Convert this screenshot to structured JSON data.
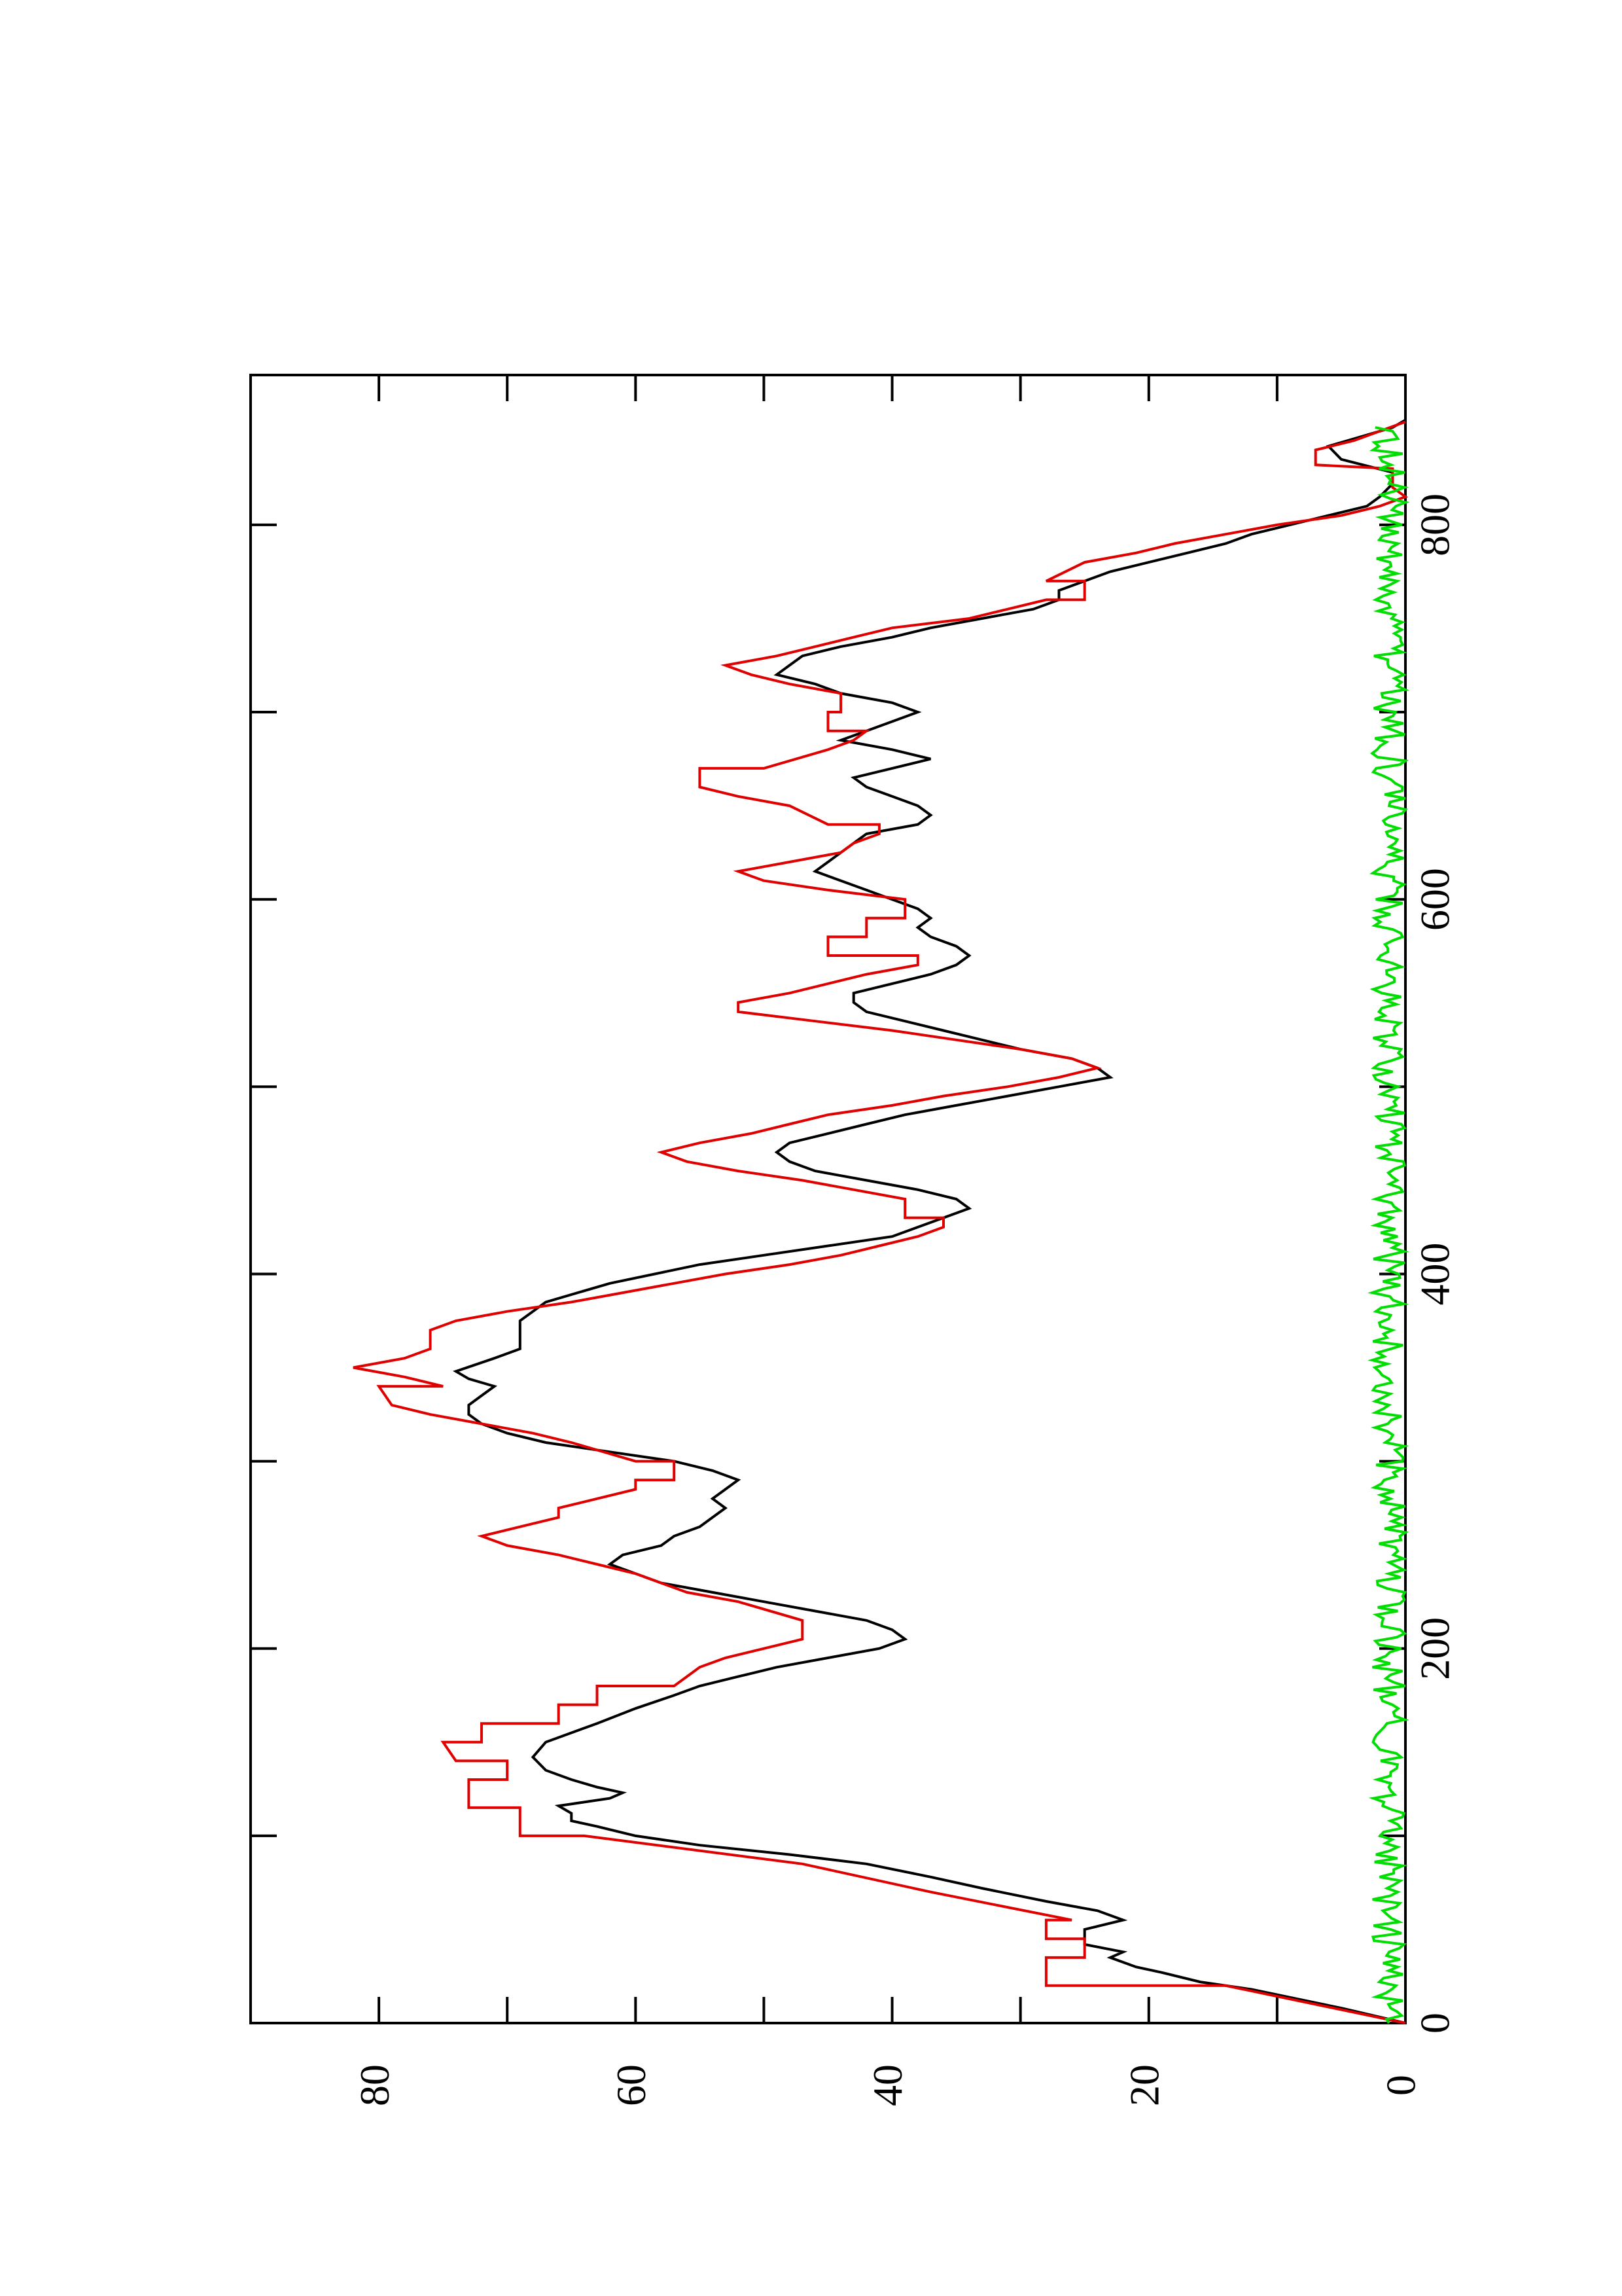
{
  "chart_data": {
    "type": "line",
    "orientation": "rotated-90-clockwise",
    "xlim": [
      0,
      880
    ],
    "ylim": [
      0,
      90
    ],
    "x_ticks": [
      0,
      200,
      400,
      600,
      800
    ],
    "x_ticks_minor": [
      100,
      300,
      500,
      700
    ],
    "y_ticks": [
      0,
      20,
      40,
      60,
      80
    ],
    "y_ticks_minor": [
      10,
      30,
      50,
      70
    ],
    "xlabel": "",
    "ylabel": "",
    "title": "",
    "grid": false,
    "series": [
      {
        "color": "#000000",
        "points": [
          [
            0,
            0
          ],
          [
            8,
            5
          ],
          [
            18,
            12
          ],
          [
            22,
            16
          ],
          [
            27,
            19
          ],
          [
            30,
            21
          ],
          [
            35,
            23
          ],
          [
            38,
            22
          ],
          [
            42,
            25
          ],
          [
            45,
            25
          ],
          [
            50,
            25
          ],
          [
            55,
            22
          ],
          [
            60,
            24
          ],
          [
            65,
            28
          ],
          [
            72,
            33
          ],
          [
            78,
            37
          ],
          [
            85,
            42
          ],
          [
            90,
            48
          ],
          [
            95,
            55
          ],
          [
            100,
            60
          ],
          [
            105,
            63
          ],
          [
            108,
            65
          ],
          [
            112,
            65
          ],
          [
            116,
            66
          ],
          [
            118,
            64
          ],
          [
            120,
            62
          ],
          [
            123,
            61
          ],
          [
            126,
            63
          ],
          [
            130,
            65
          ],
          [
            135,
            67
          ],
          [
            142,
            68
          ],
          [
            150,
            67
          ],
          [
            155,
            65
          ],
          [
            160,
            63
          ],
          [
            168,
            60
          ],
          [
            175,
            57
          ],
          [
            180,
            55
          ],
          [
            185,
            52
          ],
          [
            190,
            49
          ],
          [
            195,
            45
          ],
          [
            200,
            41
          ],
          [
            205,
            39
          ],
          [
            210,
            40
          ],
          [
            215,
            42
          ],
          [
            220,
            46
          ],
          [
            225,
            50
          ],
          [
            230,
            54
          ],
          [
            235,
            58
          ],
          [
            240,
            60
          ],
          [
            245,
            62
          ],
          [
            250,
            61
          ],
          [
            255,
            58
          ],
          [
            260,
            57
          ],
          [
            265,
            55
          ],
          [
            270,
            54
          ],
          [
            275,
            53
          ],
          [
            280,
            54
          ],
          [
            285,
            53
          ],
          [
            290,
            52
          ],
          [
            295,
            54
          ],
          [
            300,
            57
          ],
          [
            305,
            62
          ],
          [
            310,
            67
          ],
          [
            315,
            70
          ],
          [
            320,
            72
          ],
          [
            325,
            73
          ],
          [
            330,
            73
          ],
          [
            335,
            72
          ],
          [
            340,
            71
          ],
          [
            344,
            73
          ],
          [
            348,
            74
          ],
          [
            355,
            71
          ],
          [
            360,
            69
          ],
          [
            365,
            69
          ],
          [
            375,
            69
          ],
          [
            385,
            67
          ],
          [
            395,
            62
          ],
          [
            405,
            55
          ],
          [
            410,
            50
          ],
          [
            415,
            45
          ],
          [
            420,
            40
          ],
          [
            425,
            38
          ],
          [
            430,
            36
          ],
          [
            435,
            34
          ],
          [
            440,
            35
          ],
          [
            445,
            38
          ],
          [
            450,
            42
          ],
          [
            455,
            46
          ],
          [
            460,
            48
          ],
          [
            465,
            49
          ],
          [
            470,
            48
          ],
          [
            475,
            45
          ],
          [
            480,
            42
          ],
          [
            485,
            39
          ],
          [
            490,
            35
          ],
          [
            495,
            31
          ],
          [
            500,
            27
          ],
          [
            505,
            23
          ],
          [
            510,
            24
          ],
          [
            515,
            26
          ],
          [
            520,
            30
          ],
          [
            525,
            33
          ],
          [
            530,
            36
          ],
          [
            535,
            39
          ],
          [
            540,
            42
          ],
          [
            545,
            43
          ],
          [
            550,
            43
          ],
          [
            555,
            40
          ],
          [
            560,
            37
          ],
          [
            565,
            35
          ],
          [
            570,
            34
          ],
          [
            575,
            35
          ],
          [
            580,
            37
          ],
          [
            585,
            38
          ],
          [
            590,
            37
          ],
          [
            595,
            38
          ],
          [
            600,
            40
          ],
          [
            605,
            42
          ],
          [
            610,
            44
          ],
          [
            615,
            46
          ],
          [
            620,
            45
          ],
          [
            625,
            44
          ],
          [
            630,
            43
          ],
          [
            635,
            42
          ],
          [
            640,
            38
          ],
          [
            645,
            37
          ],
          [
            650,
            38
          ],
          [
            655,
            40
          ],
          [
            660,
            42
          ],
          [
            665,
            43
          ],
          [
            670,
            40
          ],
          [
            675,
            37
          ],
          [
            680,
            40
          ],
          [
            685,
            44
          ],
          [
            690,
            42
          ],
          [
            695,
            40
          ],
          [
            700,
            38
          ],
          [
            705,
            40
          ],
          [
            710,
            44
          ],
          [
            715,
            46
          ],
          [
            720,
            49
          ],
          [
            725,
            48
          ],
          [
            730,
            47
          ],
          [
            735,
            44
          ],
          [
            740,
            40
          ],
          [
            745,
            37
          ],
          [
            750,
            33
          ],
          [
            755,
            29
          ],
          [
            760,
            27
          ],
          [
            765,
            27
          ],
          [
            770,
            25
          ],
          [
            775,
            23
          ],
          [
            780,
            20
          ],
          [
            785,
            17
          ],
          [
            790,
            14
          ],
          [
            795,
            12
          ],
          [
            800,
            9
          ],
          [
            805,
            6
          ],
          [
            810,
            3
          ],
          [
            815,
            2
          ],
          [
            822,
            1
          ],
          [
            828,
            1
          ],
          [
            835,
            5
          ],
          [
            842,
            6
          ],
          [
            848,
            3
          ],
          [
            852,
            1
          ],
          [
            856,
            0
          ]
        ]
      },
      {
        "color": "#e00000",
        "points": [
          [
            0,
            0
          ],
          [
            20,
            14
          ],
          [
            20,
            28
          ],
          [
            35,
            28
          ],
          [
            35,
            25
          ],
          [
            45,
            25
          ],
          [
            45,
            28
          ],
          [
            55,
            28
          ],
          [
            55,
            26
          ],
          [
            70,
            37
          ],
          [
            85,
            47
          ],
          [
            100,
            64
          ],
          [
            100,
            69
          ],
          [
            115,
            69
          ],
          [
            115,
            73
          ],
          [
            130,
            73
          ],
          [
            130,
            70
          ],
          [
            140,
            70
          ],
          [
            140,
            74
          ],
          [
            150,
            75
          ],
          [
            150,
            72
          ],
          [
            160,
            72
          ],
          [
            160,
            66
          ],
          [
            170,
            66
          ],
          [
            170,
            63
          ],
          [
            180,
            63
          ],
          [
            180,
            57
          ],
          [
            190,
            55
          ],
          [
            195,
            53
          ],
          [
            205,
            47
          ],
          [
            215,
            47
          ],
          [
            225,
            52
          ],
          [
            230,
            56
          ],
          [
            240,
            60
          ],
          [
            245,
            63
          ],
          [
            250,
            66
          ],
          [
            255,
            70
          ],
          [
            260,
            72
          ],
          [
            265,
            69
          ],
          [
            270,
            66
          ],
          [
            275,
            66
          ],
          [
            280,
            63
          ],
          [
            285,
            60
          ],
          [
            290,
            60
          ],
          [
            290,
            57
          ],
          [
            300,
            57
          ],
          [
            300,
            60
          ],
          [
            310,
            65
          ],
          [
            315,
            68
          ],
          [
            320,
            72
          ],
          [
            325,
            76
          ],
          [
            330,
            79
          ],
          [
            340,
            80
          ],
          [
            340,
            75
          ],
          [
            345,
            78
          ],
          [
            350,
            82
          ],
          [
            355,
            78
          ],
          [
            360,
            76
          ],
          [
            370,
            76
          ],
          [
            375,
            74
          ],
          [
            380,
            70
          ],
          [
            385,
            65
          ],
          [
            390,
            61
          ],
          [
            395,
            57
          ],
          [
            400,
            53
          ],
          [
            405,
            48
          ],
          [
            410,
            44
          ],
          [
            415,
            41
          ],
          [
            420,
            38
          ],
          [
            425,
            36
          ],
          [
            430,
            36
          ],
          [
            430,
            39
          ],
          [
            440,
            39
          ],
          [
            445,
            43
          ],
          [
            450,
            47
          ],
          [
            455,
            52
          ],
          [
            460,
            56
          ],
          [
            465,
            58
          ],
          [
            470,
            55
          ],
          [
            475,
            51
          ],
          [
            480,
            48
          ],
          [
            485,
            45
          ],
          [
            490,
            40
          ],
          [
            495,
            36
          ],
          [
            500,
            31
          ],
          [
            505,
            27
          ],
          [
            510,
            24
          ],
          [
            515,
            26
          ],
          [
            520,
            30
          ],
          [
            525,
            35
          ],
          [
            530,
            40
          ],
          [
            535,
            46
          ],
          [
            540,
            52
          ],
          [
            545,
            52
          ],
          [
            550,
            48
          ],
          [
            555,
            45
          ],
          [
            560,
            42
          ],
          [
            565,
            38
          ],
          [
            570,
            38
          ],
          [
            570,
            45
          ],
          [
            580,
            45
          ],
          [
            580,
            42
          ],
          [
            590,
            42
          ],
          [
            590,
            39
          ],
          [
            600,
            39
          ],
          [
            605,
            45
          ],
          [
            610,
            50
          ],
          [
            615,
            52
          ],
          [
            620,
            48
          ],
          [
            625,
            44
          ],
          [
            630,
            43
          ],
          [
            635,
            41
          ],
          [
            640,
            41
          ],
          [
            640,
            45
          ],
          [
            650,
            48
          ],
          [
            655,
            52
          ],
          [
            660,
            55
          ],
          [
            670,
            55
          ],
          [
            670,
            50
          ],
          [
            680,
            45
          ],
          [
            685,
            43
          ],
          [
            690,
            42
          ],
          [
            690,
            45
          ],
          [
            700,
            45
          ],
          [
            700,
            44
          ],
          [
            710,
            44
          ],
          [
            715,
            48
          ],
          [
            720,
            51
          ],
          [
            725,
            53
          ],
          [
            730,
            49
          ],
          [
            735,
            46
          ],
          [
            740,
            43
          ],
          [
            745,
            40
          ],
          [
            750,
            34
          ],
          [
            755,
            31
          ],
          [
            760,
            28
          ],
          [
            760,
            25
          ],
          [
            770,
            25
          ],
          [
            770,
            28
          ],
          [
            780,
            25
          ],
          [
            785,
            21
          ],
          [
            790,
            18
          ],
          [
            795,
            14
          ],
          [
            800,
            10
          ],
          [
            805,
            5
          ],
          [
            810,
            2
          ],
          [
            815,
            0
          ],
          [
            820,
            1
          ],
          [
            830,
            1
          ],
          [
            832,
            7
          ],
          [
            840,
            7
          ],
          [
            845,
            4
          ],
          [
            850,
            2
          ],
          [
            855,
            0
          ]
        ]
      },
      {
        "color": "#00dd00",
        "noise": {
          "amplitude": 2.6,
          "step": 2,
          "seed": 7
        }
      }
    ]
  }
}
